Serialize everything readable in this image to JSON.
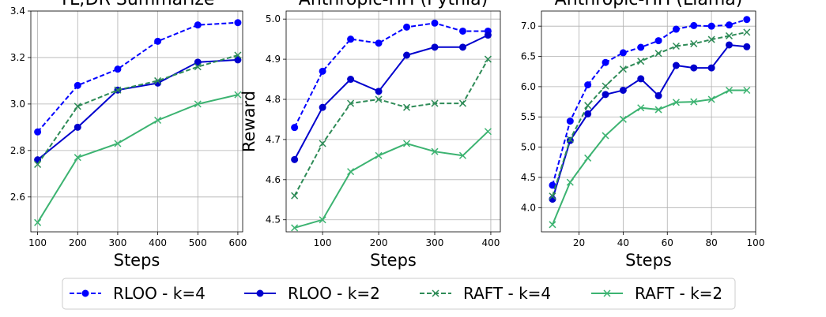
{
  "figure": {
    "legend": [
      {
        "label": "RLOO - k=4",
        "color": "#0000ff",
        "style": "dashed",
        "marker": "circle"
      },
      {
        "label": "RLOO - k=2",
        "color": "#0000cd",
        "style": "solid",
        "marker": "circle"
      },
      {
        "label": "RAFT - k=4",
        "color": "#2e8b57",
        "style": "dashed",
        "marker": "x"
      },
      {
        "label": "RAFT - k=2",
        "color": "#3cb371",
        "style": "solid",
        "marker": "x"
      }
    ]
  },
  "chart_data": [
    {
      "type": "line",
      "title": "TL;DR Summarize",
      "xlabel": "Steps",
      "ylabel": "",
      "xlim": [
        83,
        612
      ],
      "ylim": [
        2.45,
        3.4
      ],
      "xticks": [
        100,
        200,
        300,
        400,
        500,
        600
      ],
      "yticks": [
        2.6,
        2.8,
        3.0,
        3.2,
        3.4
      ],
      "ytick_labels": [
        "2.6",
        "2.8",
        "3.0",
        "3.2",
        "3.4"
      ],
      "grid": true,
      "x": [
        100,
        200,
        300,
        400,
        500,
        600
      ],
      "series": [
        {
          "name": "RLOO - k=4",
          "values": [
            2.88,
            3.08,
            3.15,
            3.27,
            3.34,
            3.35
          ]
        },
        {
          "name": "RLOO - k=2",
          "values": [
            2.76,
            2.9,
            3.06,
            3.09,
            3.18,
            3.19
          ]
        },
        {
          "name": "RAFT - k=4",
          "values": [
            2.74,
            2.99,
            3.06,
            3.1,
            3.16,
            3.21
          ]
        },
        {
          "name": "RAFT - k=2",
          "values": [
            2.49,
            2.77,
            2.83,
            2.93,
            3.0,
            3.04
          ]
        }
      ]
    },
    {
      "type": "line",
      "title": "Anthropic-HH (Pythia)",
      "xlabel": "Steps",
      "ylabel": "Reward",
      "xlim": [
        35,
        417
      ],
      "ylim": [
        4.47,
        5.02
      ],
      "xticks": [
        100,
        200,
        300,
        400
      ],
      "yticks": [
        4.5,
        4.6,
        4.7,
        4.8,
        4.9,
        5.0
      ],
      "ytick_labels": [
        "4.5",
        "4.6",
        "4.7",
        "4.8",
        "4.9",
        "5.0"
      ],
      "grid": true,
      "x": [
        50,
        100,
        150,
        200,
        250,
        300,
        350,
        395
      ],
      "series": [
        {
          "name": "RLOO - k=4",
          "values": [
            4.73,
            4.87,
            4.95,
            4.94,
            4.98,
            4.99,
            4.97,
            4.97
          ]
        },
        {
          "name": "RLOO - k=2",
          "values": [
            4.65,
            4.78,
            4.85,
            4.82,
            4.91,
            4.93,
            4.93,
            4.96
          ]
        },
        {
          "name": "RAFT - k=4",
          "values": [
            4.56,
            4.69,
            4.79,
            4.8,
            4.78,
            4.79,
            4.79,
            4.9
          ]
        },
        {
          "name": "RAFT - k=2",
          "values": [
            4.48,
            4.5,
            4.62,
            4.66,
            4.69,
            4.67,
            4.66,
            4.72
          ]
        }
      ]
    },
    {
      "type": "line",
      "title": "Anthropic-HH (Llama)",
      "xlabel": "Steps",
      "ylabel": "",
      "xlim": [
        3,
        100
      ],
      "ylim": [
        3.6,
        7.25
      ],
      "xticks": [
        20,
        40,
        60,
        80,
        100
      ],
      "yticks": [
        4.0,
        4.5,
        5.0,
        5.5,
        6.0,
        6.5,
        7.0
      ],
      "ytick_labels": [
        "4.0",
        "4.5",
        "5.0",
        "5.5",
        "6.0",
        "6.5",
        "7.0"
      ],
      "grid": true,
      "x": [
        8,
        16,
        24,
        32,
        40,
        48,
        56,
        64,
        72,
        80,
        88,
        96
      ],
      "series": [
        {
          "name": "RLOO - k=4",
          "values": [
            4.37,
            5.43,
            6.03,
            6.4,
            6.56,
            6.65,
            6.76,
            6.95,
            7.01,
            7.0,
            7.02,
            7.11
          ]
        },
        {
          "name": "RLOO - k=2",
          "values": [
            4.14,
            5.11,
            5.55,
            5.87,
            5.94,
            6.13,
            5.85,
            6.35,
            6.31,
            6.31,
            6.69,
            6.66
          ]
        },
        {
          "name": "RAFT - k=4",
          "values": [
            4.19,
            5.13,
            5.69,
            6.01,
            6.29,
            6.42,
            6.55,
            6.67,
            6.71,
            6.78,
            6.84,
            6.9
          ]
        },
        {
          "name": "RAFT - k=2",
          "values": [
            3.72,
            4.42,
            4.82,
            5.19,
            5.46,
            5.65,
            5.62,
            5.74,
            5.75,
            5.79,
            5.94,
            5.94
          ]
        }
      ]
    }
  ]
}
